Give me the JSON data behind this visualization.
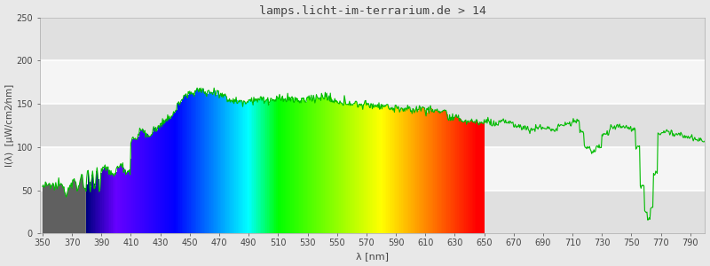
{
  "title": "lamps.licht-im-terrarium.de > 14",
  "xlabel": "λ [nm]",
  "ylabel": "I(λ)  [µW/cm2⁄nm]",
  "xlim": [
    348,
    800
  ],
  "ylim": [
    0,
    250
  ],
  "xticks": [
    350,
    370,
    390,
    410,
    430,
    450,
    470,
    490,
    510,
    530,
    550,
    570,
    590,
    610,
    630,
    650,
    670,
    690,
    710,
    730,
    750,
    770,
    790
  ],
  "yticks": [
    0,
    50,
    100,
    150,
    200,
    250
  ],
  "background_color": "#e8e8e8",
  "band1_color": "#f5f5f5",
  "band2_color": "#e0e0e0",
  "line_color": "#00bb00",
  "title_color": "#444444",
  "uv_color": "#555555",
  "figsize": [
    8.0,
    3.0
  ],
  "dpi": 100,
  "wl_start": 350,
  "wl_end": 800,
  "vis_start": 380,
  "vis_end": 650
}
